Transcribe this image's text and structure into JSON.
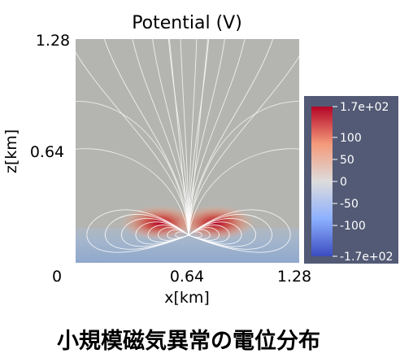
{
  "chart_data": {
    "type": "heatmap",
    "title": "Potential (V)",
    "xlabel": "x[km]",
    "ylabel": "z[km]",
    "xlim": [
      0,
      1.28
    ],
    "ylim": [
      0,
      1.28
    ],
    "x_ticks": [
      "0",
      "0.64",
      "1.28"
    ],
    "y_ticks": [
      "1.28",
      "0.64"
    ],
    "colorbar": {
      "min": -170,
      "max": 170,
      "tick_values": [
        170,
        100,
        50,
        0,
        -50,
        -100,
        -170
      ],
      "tick_labels": [
        "1.7e+02",
        "100",
        "50",
        "0",
        "-50",
        "-100",
        "-1.7e+02"
      ],
      "colors": [
        "#3b4cc0",
        "#8db0fe",
        "#dddcdc",
        "#f49a7b",
        "#b40426"
      ]
    },
    "field_lines": true,
    "background_color": "#b4b4b0",
    "ground_color": "#9bb0cc",
    "line_color": "#ffffff"
  },
  "caption": "小規模磁気異常の電位分布"
}
